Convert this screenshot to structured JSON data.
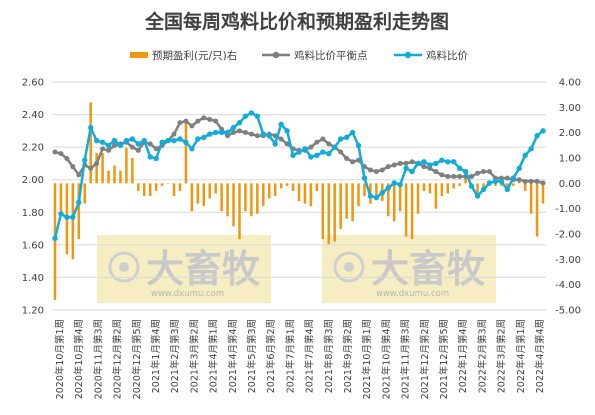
{
  "chart_data": {
    "type": "bar+line",
    "title": "全国每周鸡料比价和预期盈利走势图",
    "legend": [
      "预期盈利(元/只)右",
      "鸡料比价平衡点",
      "鸡料比价"
    ],
    "colors": {
      "profit": "#f0960f",
      "breakeven": "#7f7f7f",
      "ratio": "#11acd9",
      "watermark_box": "#f6eec2"
    },
    "ylim_left": [
      1.2,
      2.6
    ],
    "ylim_right": [
      -5.0,
      4.0
    ],
    "yticks_left": [
      "1.20",
      "1.40",
      "1.60",
      "1.80",
      "2.00",
      "2.20",
      "2.40",
      "2.60"
    ],
    "yticks_right": [
      "-5.00",
      "-4.00",
      "-3.00",
      "-2.00",
      "-1.00",
      "0.00",
      "1.00",
      "2.00",
      "3.00",
      "4.00"
    ],
    "x_tick_labels": [
      "2020年10月第1周",
      "2020年10月第4周",
      "2020年11月第3周",
      "2020年12月第2周",
      "2020年12月第5周",
      "2021年1月第4周",
      "2021年2月第3周",
      "2021年3月第2周",
      "2021年4月第1周",
      "2021年4月第4周",
      "2021年5月第3周",
      "2021年6月第2周",
      "2021年7月第1周",
      "2021年7月第4周",
      "2021年8月第3周",
      "2021年9月第2周",
      "2021年10月第1周",
      "2021年10月第4周",
      "2021年11月第3周",
      "2021年12月第2周",
      "2021年12月第5周",
      "2022年1月第4周",
      "2022年2月第3周",
      "2022年3月第2周",
      "2022年4月第1周",
      "2022年4月第4周"
    ],
    "watermark": {
      "brand": "大畜牧",
      "url": "www.dxumu.com"
    },
    "ratio": [
      1.64,
      1.79,
      1.77,
      1.77,
      1.86,
      2.12,
      2.32,
      2.24,
      2.23,
      2.21,
      2.24,
      2.21,
      2.24,
      2.25,
      2.22,
      2.24,
      2.14,
      2.13,
      2.23,
      2.24,
      2.24,
      2.25,
      2.23,
      2.19,
      2.25,
      2.26,
      2.28,
      2.29,
      2.29,
      2.29,
      2.32,
      2.35,
      2.39,
      2.41,
      2.39,
      2.28,
      2.27,
      2.22,
      2.34,
      2.3,
      2.15,
      2.17,
      2.19,
      2.14,
      2.15,
      2.17,
      2.16,
      2.2,
      2.25,
      2.26,
      2.29,
      2.21,
      2.01,
      1.9,
      1.89,
      1.92,
      1.95,
      1.98,
      1.97,
      2.07,
      2.05,
      2.1,
      2.11,
      2.09,
      2.1,
      2.12,
      2.11,
      2.11,
      2.07,
      2.05,
      1.96,
      1.9,
      1.94,
      1.98,
      1.99,
      1.99,
      1.94,
      2.01,
      2.07,
      2.15,
      2.19,
      2.27,
      2.3
    ],
    "breakeven": [
      2.17,
      2.16,
      2.13,
      2.08,
      2.03,
      2.09,
      2.07,
      2.1,
      2.19,
      2.18,
      2.21,
      2.22,
      2.23,
      2.2,
      2.18,
      2.23,
      2.22,
      2.19,
      2.21,
      2.24,
      2.28,
      2.35,
      2.36,
      2.33,
      2.36,
      2.38,
      2.37,
      2.36,
      2.31,
      2.27,
      2.29,
      2.3,
      2.29,
      2.28,
      2.27,
      2.27,
      2.28,
      2.27,
      2.25,
      2.22,
      2.19,
      2.18,
      2.18,
      2.2,
      2.23,
      2.25,
      2.22,
      2.2,
      2.17,
      2.13,
      2.11,
      2.12,
      2.08,
      2.06,
      2.05,
      2.06,
      2.08,
      2.09,
      2.1,
      2.1,
      2.11,
      2.1,
      2.08,
      2.07,
      2.05,
      2.03,
      2.02,
      2.02,
      2.02,
      2.02,
      2.02,
      2.04,
      2.05,
      2.05,
      2.01,
      2.01,
      2.01,
      2.0,
      2.0,
      1.99,
      1.99,
      1.99,
      1.98
    ],
    "profit": [
      -4.6,
      -1.2,
      -2.8,
      -3.0,
      -2.2,
      -0.8,
      3.2,
      1.2,
      1.2,
      0.5,
      0.7,
      0.5,
      1.4,
      1.0,
      -0.3,
      -0.5,
      -0.5,
      -0.3,
      -0.1,
      0.0,
      -0.5,
      -0.3,
      2.5,
      -1.1,
      -0.8,
      -0.9,
      -0.6,
      -0.4,
      -1.1,
      -1.3,
      -1.7,
      -2.2,
      -1.1,
      -1.3,
      -1.2,
      -0.9,
      -0.6,
      -0.5,
      -0.2,
      -0.1,
      -0.3,
      -0.7,
      -0.8,
      -0.9,
      -0.3,
      -2.2,
      -2.4,
      -2.3,
      -1.8,
      -1.4,
      -1.5,
      -0.9,
      -0.5,
      -0.8,
      -0.5,
      -0.7,
      -1.3,
      -1.5,
      -1.1,
      -2.1,
      -2.2,
      -1.2,
      -0.3,
      -0.4,
      -1.0,
      -0.5,
      -0.4,
      -0.2,
      -0.1,
      0.2,
      -0.2,
      -0.4,
      -0.3,
      -0.1,
      -0.1,
      -0.1,
      -0.2,
      -0.1,
      0.1,
      -0.3,
      -1.2,
      -2.1,
      -0.8
    ]
  }
}
